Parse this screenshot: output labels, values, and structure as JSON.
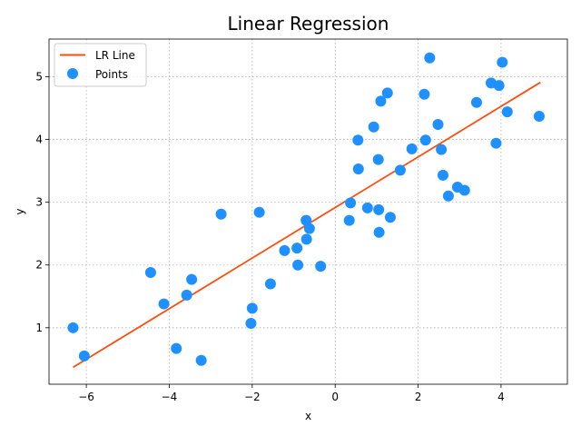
{
  "chart_data": {
    "type": "scatter",
    "title": "Linear Regression",
    "xlabel": "x",
    "ylabel": "y",
    "xlim": [
      -6.9,
      5.6
    ],
    "ylim": [
      0.1,
      5.6
    ],
    "xticks": [
      -6,
      -4,
      -2,
      0,
      2,
      4
    ],
    "xtick_labels": [
      "−6",
      "−4",
      "−2",
      "0",
      "2",
      "4"
    ],
    "yticks": [
      1,
      2,
      3,
      4,
      5
    ],
    "ytick_labels": [
      "1",
      "2",
      "3",
      "4",
      "5"
    ],
    "grid": true,
    "legend_position": "top-left",
    "colors": {
      "line": "#ff4d0d",
      "points": "#1e90ff"
    },
    "series": [
      {
        "name": "LR Line",
        "kind": "line",
        "x": [
          -6.32,
          4.95
        ],
        "y": [
          0.37,
          4.91
        ]
      },
      {
        "name": "Points",
        "kind": "scatter",
        "x": [
          -6.32,
          -6.05,
          -4.45,
          -4.13,
          -3.83,
          -3.58,
          -3.46,
          -3.23,
          -2.75,
          -2.03,
          -2.0,
          -1.83,
          -1.56,
          -1.22,
          -0.92,
          -0.9,
          -0.7,
          -0.69,
          -0.62,
          -0.35,
          0.34,
          0.37,
          0.55,
          0.56,
          0.78,
          0.93,
          1.04,
          1.05,
          1.06,
          1.1,
          1.26,
          1.33,
          1.57,
          1.85,
          2.15,
          2.18,
          2.28,
          2.48,
          2.56,
          2.6,
          2.73,
          2.95,
          3.12,
          3.41,
          3.76,
          3.88,
          3.95,
          4.03,
          4.15,
          4.92
        ],
        "y": [
          1.0,
          0.55,
          1.88,
          1.38,
          0.67,
          1.52,
          1.77,
          0.48,
          2.81,
          1.07,
          1.31,
          2.84,
          1.7,
          2.23,
          2.27,
          2.0,
          2.71,
          2.41,
          2.58,
          1.98,
          2.71,
          2.99,
          3.99,
          3.53,
          2.91,
          4.2,
          3.68,
          2.88,
          2.52,
          4.61,
          4.74,
          2.76,
          3.51,
          3.85,
          4.72,
          3.99,
          5.3,
          4.24,
          3.84,
          3.43,
          3.1,
          3.24,
          3.19,
          4.59,
          4.9,
          3.94,
          4.86,
          5.23,
          4.44,
          4.37
        ]
      }
    ]
  }
}
